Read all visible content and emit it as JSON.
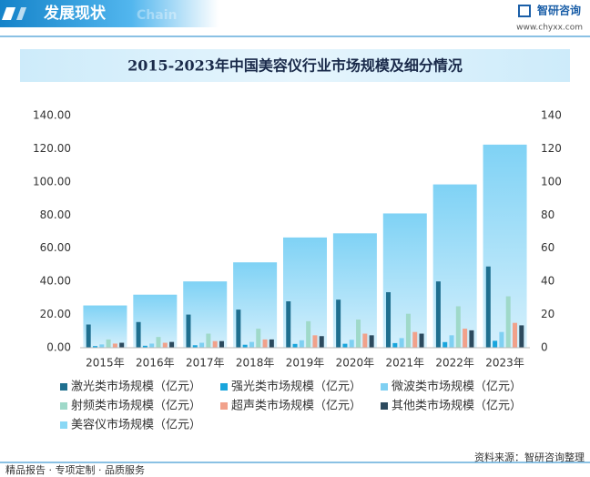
{
  "header": {
    "title": "发展现状",
    "subtitle": "Chain",
    "brand": "智研咨询",
    "url": "www.chyxx.com"
  },
  "footer": {
    "slogan": "精品报告 · 专项定制 · 品质服务",
    "source": "资料来源：智研咨询整理"
  },
  "chart_data": {
    "type": "bar",
    "title": "2015-2023年中国美容仪行业市场规模及细分情况",
    "categories": [
      "2015年",
      "2016年",
      "2017年",
      "2018年",
      "2019年",
      "2020年",
      "2021年",
      "2022年",
      "2023年"
    ],
    "series": [
      {
        "name": "激光类市场规模（亿元）",
        "color": "#1f6f8f",
        "values": [
          14,
          15.5,
          20,
          23,
          28,
          29,
          33.5,
          40,
          49
        ]
      },
      {
        "name": "强光类市场规模（亿元）",
        "color": "#19a5dc",
        "values": [
          1,
          1.2,
          1.5,
          1.8,
          2.3,
          2.4,
          2.8,
          3.4,
          4.2
        ]
      },
      {
        "name": "微波类市场规模（亿元）",
        "color": "#7fd0f2",
        "values": [
          2,
          2.5,
          3,
          3.5,
          4.5,
          4.8,
          5.8,
          7.5,
          9.5
        ]
      },
      {
        "name": "射频类市场规模（亿元）",
        "color": "#9fd9c9",
        "values": [
          5,
          6.5,
          8.5,
          11.5,
          16,
          17,
          20.5,
          25,
          31
        ]
      },
      {
        "name": "超声类市场规模（亿元）",
        "color": "#f1a18b",
        "values": [
          2.5,
          3,
          4,
          5,
          7.5,
          8.5,
          9.5,
          11.5,
          15
        ]
      },
      {
        "name": "其他类市场规模（亿元）",
        "color": "#2c4a5e",
        "values": [
          3,
          3.5,
          4,
          5,
          7,
          7.5,
          8.5,
          10.5,
          13.5
        ]
      },
      {
        "name": "美容仪市场规模（亿元）",
        "color": "#8ad8f5",
        "axis": "y2",
        "values": [
          25.5,
          32,
          40,
          51.5,
          66.5,
          69,
          81,
          98.5,
          122.5
        ]
      }
    ],
    "ylim": [
      0,
      140
    ],
    "yticks": [
      {
        "value": 0,
        "label": "0.00"
      },
      {
        "value": 20,
        "label": "20.00"
      },
      {
        "value": 40,
        "label": "40.00"
      },
      {
        "value": 60,
        "label": "60.00"
      },
      {
        "value": 80,
        "label": "80.00"
      },
      {
        "value": 100,
        "label": "100.00"
      },
      {
        "value": 120,
        "label": "120.00"
      },
      {
        "value": 140,
        "label": "140.00"
      }
    ],
    "y2lim": [
      0,
      140
    ],
    "y2ticks": [
      0,
      20,
      40,
      60,
      80,
      100,
      120,
      140
    ]
  }
}
